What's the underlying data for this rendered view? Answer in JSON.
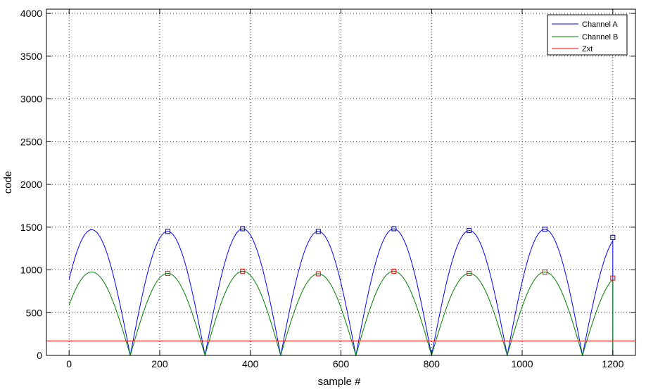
{
  "chart_data": {
    "type": "line",
    "title": "",
    "xlabel": "sample #",
    "ylabel": "code",
    "xlim": [
      -50,
      1250
    ],
    "ylim": [
      0,
      4050
    ],
    "xticks": [
      0,
      200,
      400,
      600,
      800,
      1000,
      1200
    ],
    "yticks": [
      0,
      500,
      1000,
      1500,
      2000,
      2500,
      3000,
      3500,
      4000
    ],
    "grid": true,
    "legend_position": "top-right",
    "series": [
      {
        "name": "Channel A",
        "color": "#0000ff",
        "arches": [
          [
            0,
            135
          ],
          [
            135,
            300
          ],
          [
            300,
            467
          ],
          [
            467,
            633
          ],
          [
            633,
            800
          ],
          [
            800,
            967
          ],
          [
            967,
            1133
          ],
          [
            1133,
            1200
          ]
        ],
        "peaks": [
          1470,
          1450,
          1480,
          1450,
          1480,
          1460,
          1475,
          1400
        ],
        "start_value": 890,
        "end_drop_to": 0
      },
      {
        "name": "Channel B",
        "color": "#008000",
        "arches": [
          [
            0,
            135
          ],
          [
            135,
            300
          ],
          [
            300,
            467
          ],
          [
            467,
            633
          ],
          [
            633,
            800
          ],
          [
            800,
            967
          ],
          [
            967,
            1133
          ],
          [
            1133,
            1200
          ]
        ],
        "peaks": [
          975,
          960,
          985,
          955,
          985,
          960,
          975,
          930
        ],
        "start_value": 590,
        "end_drop_to": 0
      },
      {
        "name": "Zxt",
        "color": "#ff0000",
        "values": [
          [
            -50,
            170
          ],
          [
            1250,
            170
          ]
        ]
      }
    ],
    "markers_A": [
      [
        218,
        1450
      ],
      [
        383,
        1482
      ],
      [
        550,
        1450
      ],
      [
        717,
        1482
      ],
      [
        883,
        1460
      ],
      [
        1050,
        1475
      ],
      [
        1200,
        1380
      ]
    ],
    "markers_B": [
      [
        218,
        960
      ],
      [
        383,
        985
      ],
      [
        550,
        955
      ],
      [
        717,
        985
      ],
      [
        883,
        960
      ],
      [
        1050,
        975
      ],
      [
        1200,
        905
      ]
    ]
  }
}
